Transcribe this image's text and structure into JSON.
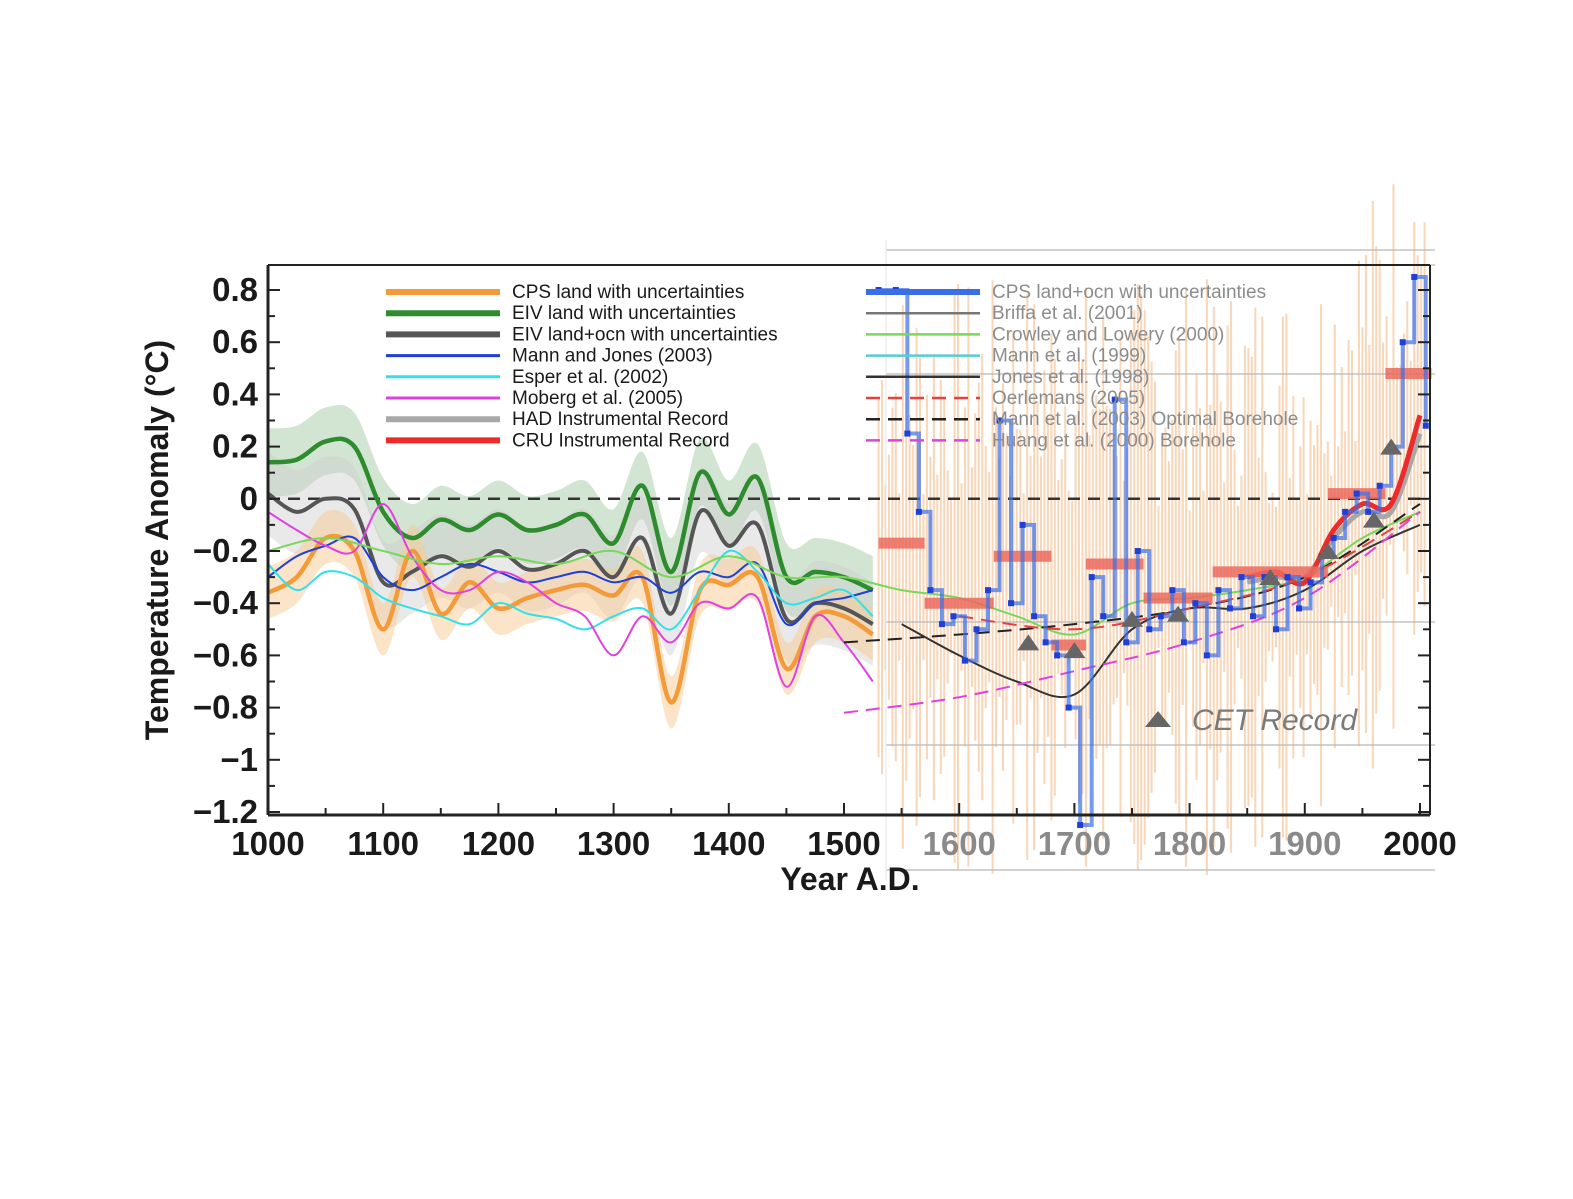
{
  "chart_data": {
    "type": "line",
    "ylabel": "Temperature Anomaly (°C)",
    "xlabel": "Year A.D.",
    "xlim": [
      1000,
      2000
    ],
    "ylim": [
      -1.2,
      0.9
    ],
    "x_ticks": [
      "1000",
      "1100",
      "1200",
      "1300",
      "1400",
      "1500",
      "1600",
      "1700",
      "1800",
      "1900",
      "2000"
    ],
    "y_ticks": [
      "0.8",
      "0.6",
      "0.4",
      "0.2",
      "0",
      "−0.2",
      "−0.4",
      "−0.6",
      "−0.8",
      "−1",
      "−1.2"
    ],
    "zero_line": "dashed",
    "annotation": "CET Record",
    "legend_left": [
      {
        "name": "CPS land with uncertainties",
        "color": "#f39b3a"
      },
      {
        "name": "EIV land with uncertainties",
        "color": "#2e8b2e"
      },
      {
        "name": "EIV land+ocn with uncertainties",
        "color": "#555555"
      },
      {
        "name": "Mann and Jones (2003)",
        "color": "#1f3fd6"
      },
      {
        "name": "Esper et al. (2002)",
        "color": "#33e0e8"
      },
      {
        "name": "Moberg et al. (2005)",
        "color": "#e040e0"
      },
      {
        "name": "HAD Instrumental Record",
        "color": "#a8a8a8"
      },
      {
        "name": "CRU Instrumental Record",
        "color": "#ee2a2a"
      }
    ],
    "legend_right": [
      {
        "name": "CPS land+ocn with uncertainties",
        "color": "#3a6fe8",
        "dash": false
      },
      {
        "name": "Briffa et al. (2001)",
        "color": "#777777",
        "dash": false
      },
      {
        "name": "Crowley and Lowery (2000)",
        "color": "#77d85a",
        "dash": false
      },
      {
        "name": "Mann et al. (1999)",
        "color": "#55ccd8",
        "dash": false
      },
      {
        "name": "Jones et al. (1998)",
        "color": "#333333",
        "dash": false
      },
      {
        "name": "Oerlemans (2005)",
        "color": "#e84040",
        "dash": true
      },
      {
        "name": "Mann et al. (2003) Optimal Borehole",
        "color": "#222222",
        "dash": true
      },
      {
        "name": "Huang et al. (2000) Borehole",
        "color": "#e040e0",
        "dash": true
      }
    ],
    "series": [
      {
        "name": "EIV land with uncertainties",
        "color": "#2e8b2e",
        "x": [
          1000,
          1025,
          1050,
          1075,
          1100,
          1125,
          1150,
          1175,
          1200,
          1225,
          1250,
          1275,
          1300,
          1325,
          1350,
          1375,
          1400,
          1425,
          1450,
          1475,
          1500,
          1525
        ],
        "y": [
          0.14,
          0.15,
          0.22,
          0.2,
          -0.05,
          -0.15,
          -0.08,
          -0.12,
          -0.06,
          -0.12,
          -0.1,
          -0.06,
          -0.17,
          0.05,
          -0.28,
          0.1,
          -0.06,
          0.08,
          -0.3,
          -0.28,
          -0.3,
          -0.35
        ]
      },
      {
        "name": "EIV land+ocn with uncertainties",
        "color": "#555555",
        "x": [
          1000,
          1025,
          1050,
          1075,
          1100,
          1125,
          1150,
          1175,
          1200,
          1225,
          1250,
          1275,
          1300,
          1325,
          1350,
          1375,
          1400,
          1425,
          1450,
          1475,
          1500,
          1525
        ],
        "y": [
          0.02,
          -0.05,
          0.0,
          -0.04,
          -0.32,
          -0.28,
          -0.22,
          -0.26,
          -0.2,
          -0.27,
          -0.25,
          -0.2,
          -0.3,
          -0.15,
          -0.44,
          -0.05,
          -0.18,
          -0.1,
          -0.46,
          -0.4,
          -0.42,
          -0.48
        ]
      },
      {
        "name": "CPS land with uncertainties",
        "color": "#f39b3a",
        "x": [
          1000,
          1025,
          1050,
          1075,
          1100,
          1125,
          1150,
          1175,
          1200,
          1225,
          1250,
          1275,
          1300,
          1325,
          1350,
          1375,
          1400,
          1425,
          1450,
          1475,
          1500,
          1525
        ],
        "y": [
          -0.36,
          -0.3,
          -0.15,
          -0.2,
          -0.5,
          -0.2,
          -0.44,
          -0.32,
          -0.42,
          -0.38,
          -0.35,
          -0.33,
          -0.37,
          -0.3,
          -0.78,
          -0.35,
          -0.33,
          -0.3,
          -0.65,
          -0.45,
          -0.45,
          -0.52
        ]
      },
      {
        "name": "Mann and Jones (2003)",
        "color": "#1f3fd6",
        "x": [
          1000,
          1025,
          1050,
          1075,
          1100,
          1125,
          1150,
          1175,
          1200,
          1225,
          1250,
          1275,
          1300,
          1325,
          1350,
          1375,
          1400,
          1425,
          1450,
          1475,
          1500,
          1525
        ],
        "y": [
          -0.3,
          -0.22,
          -0.18,
          -0.15,
          -0.3,
          -0.35,
          -0.3,
          -0.25,
          -0.28,
          -0.32,
          -0.3,
          -0.28,
          -0.32,
          -0.3,
          -0.36,
          -0.28,
          -0.3,
          -0.25,
          -0.48,
          -0.4,
          -0.38,
          -0.35
        ]
      },
      {
        "name": "Esper et al. (2002)",
        "color": "#33e0e8",
        "x": [
          1000,
          1025,
          1050,
          1075,
          1100,
          1125,
          1150,
          1175,
          1200,
          1225,
          1250,
          1275,
          1300,
          1325,
          1350,
          1375,
          1400,
          1425,
          1450,
          1475,
          1500,
          1525
        ],
        "y": [
          -0.25,
          -0.35,
          -0.28,
          -0.3,
          -0.38,
          -0.42,
          -0.45,
          -0.48,
          -0.4,
          -0.44,
          -0.46,
          -0.5,
          -0.45,
          -0.42,
          -0.5,
          -0.35,
          -0.2,
          -0.28,
          -0.4,
          -0.38,
          -0.35,
          -0.45
        ]
      },
      {
        "name": "Moberg et al. (2005)",
        "color": "#e040e0",
        "x": [
          1000,
          1025,
          1050,
          1075,
          1100,
          1125,
          1150,
          1175,
          1200,
          1225,
          1250,
          1275,
          1300,
          1325,
          1350,
          1375,
          1400,
          1425,
          1450,
          1475,
          1500,
          1525
        ],
        "y": [
          -0.05,
          -0.12,
          -0.18,
          -0.2,
          -0.02,
          -0.22,
          -0.35,
          -0.35,
          -0.28,
          -0.32,
          -0.4,
          -0.45,
          -0.6,
          -0.45,
          -0.55,
          -0.4,
          -0.42,
          -0.38,
          -0.72,
          -0.45,
          -0.55,
          -0.7
        ]
      },
      {
        "name": "HAD Instrumental Record",
        "color": "#a8a8a8",
        "x": [
          1850,
          1875,
          1900,
          1925,
          1950,
          1975,
          2000
        ],
        "y": [
          -0.32,
          -0.3,
          -0.3,
          -0.15,
          -0.05,
          -0.05,
          0.25
        ]
      },
      {
        "name": "CRU Instrumental Record",
        "color": "#ee2a2a",
        "x": [
          1850,
          1875,
          1900,
          1925,
          1950,
          1975,
          2000
        ],
        "y": [
          -0.3,
          -0.28,
          -0.32,
          -0.12,
          -0.02,
          -0.02,
          0.32
        ]
      },
      {
        "name": "Crowley and Lowery (2000)",
        "color": "#77d85a",
        "x": [
          1000,
          1050,
          1100,
          1150,
          1200,
          1250,
          1300,
          1350,
          1400,
          1450,
          1500,
          1550,
          1600,
          1650,
          1700,
          1750,
          1800,
          1850,
          1900,
          1950,
          2000
        ],
        "y": [
          -0.2,
          -0.15,
          -0.2,
          -0.25,
          -0.22,
          -0.25,
          -0.2,
          -0.3,
          -0.22,
          -0.3,
          -0.3,
          -0.35,
          -0.38,
          -0.45,
          -0.52,
          -0.4,
          -0.38,
          -0.35,
          -0.3,
          -0.15,
          -0.05
        ]
      },
      {
        "name": "Jones et al. (1998)",
        "color": "#333333",
        "x": [
          1550,
          1600,
          1650,
          1700,
          1750,
          1800,
          1850,
          1900,
          1950,
          2000
        ],
        "y": [
          -0.48,
          -0.6,
          -0.7,
          -0.75,
          -0.5,
          -0.42,
          -0.42,
          -0.35,
          -0.2,
          -0.1
        ]
      },
      {
        "name": "Huang et al. (2000) Borehole",
        "color": "#e040e0",
        "dash": true,
        "x": [
          1500,
          1600,
          1700,
          1800,
          1900,
          2000
        ],
        "y": [
          -0.82,
          -0.76,
          -0.66,
          -0.55,
          -0.38,
          -0.05
        ]
      },
      {
        "name": "Mann et al. (2003) Optimal Borehole",
        "color": "#222222",
        "dash": true,
        "x": [
          1500,
          1600,
          1700,
          1800,
          1900,
          2000
        ],
        "y": [
          -0.55,
          -0.52,
          -0.48,
          -0.42,
          -0.3,
          -0.02
        ]
      },
      {
        "name": "Oerlemans (2005)",
        "color": "#e84040",
        "dash": true,
        "x": [
          1600,
          1700,
          1800,
          1900,
          2000
        ],
        "y": [
          -0.45,
          -0.5,
          -0.42,
          -0.3,
          -0.05
        ]
      }
    ],
    "cps_land_ocn_steps": {
      "name": "CPS land+ocn with uncertainties",
      "color": "#3a6fe8",
      "x": [
        1530,
        1545,
        1555,
        1565,
        1575,
        1585,
        1595,
        1605,
        1615,
        1625,
        1635,
        1645,
        1655,
        1665,
        1675,
        1685,
        1695,
        1705,
        1715,
        1725,
        1735,
        1745,
        1755,
        1765,
        1775,
        1785,
        1795,
        1805,
        1815,
        1825,
        1835,
        1845,
        1855,
        1865,
        1875,
        1885,
        1895,
        1905,
        1915,
        1925,
        1935,
        1945,
        1955,
        1965,
        1975,
        1985,
        1995,
        2005
      ],
      "y": [
        0.8,
        0.8,
        0.25,
        -0.05,
        -0.35,
        -0.48,
        -0.45,
        -0.62,
        -0.5,
        -0.35,
        0.3,
        -0.4,
        -0.1,
        -0.45,
        -0.55,
        -0.6,
        -0.8,
        -1.25,
        -0.3,
        -0.45,
        0.38,
        -0.55,
        -0.2,
        -0.5,
        -0.45,
        -0.35,
        -0.55,
        -0.4,
        -0.6,
        -0.35,
        -0.42,
        -0.3,
        -0.45,
        -0.3,
        -0.5,
        -0.3,
        -0.42,
        -0.32,
        -0.22,
        -0.15,
        -0.05,
        0.02,
        -0.05,
        0.05,
        0.2,
        0.6,
        0.85,
        0.28
      ]
    },
    "cet_record": {
      "name": "CET Record",
      "color": "#666666",
      "x": [
        1660,
        1700,
        1750,
        1790,
        1870,
        1920,
        1960,
        1975
      ],
      "y": [
        -0.55,
        -0.58,
        -0.46,
        -0.44,
        -0.3,
        -0.2,
        -0.08,
        0.2
      ]
    },
    "red_blocks": [
      {
        "x0": 1530,
        "x1": 1570,
        "y": -0.17
      },
      {
        "x0": 1570,
        "x1": 1630,
        "y": -0.4
      },
      {
        "x0": 1630,
        "x1": 1680,
        "y": -0.22
      },
      {
        "x0": 1680,
        "x1": 1710,
        "y": -0.56
      },
      {
        "x0": 1710,
        "x1": 1760,
        "y": -0.25
      },
      {
        "x0": 1760,
        "x1": 1820,
        "y": -0.38
      },
      {
        "x0": 1820,
        "x1": 1920,
        "y": -0.28
      },
      {
        "x0": 1920,
        "x1": 1970,
        "y": 0.02
      },
      {
        "x0": 1970,
        "x1": 2010,
        "y": 0.48
      }
    ]
  }
}
